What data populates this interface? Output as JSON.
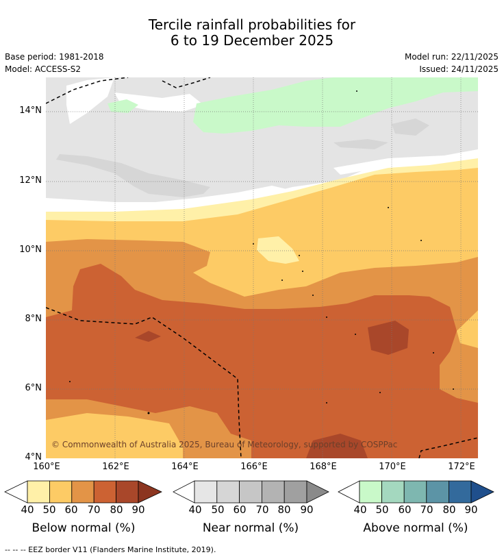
{
  "title_line1": "Tercile rainfall probabilities for",
  "title_line2": "6 to 19 December 2025",
  "base_period": "Base period: 1981-2018",
  "model": "Model: ACCESS-S2",
  "model_run": "Model run: 22/11/2025",
  "issued": "Issued: 24/11/2025",
  "copyright": "© Commonwealth of Australia 2025, Bureau of Meteorology, supported by COSPPac",
  "lat_labels": [
    "14°N",
    "12°N",
    "10°N",
    "8°N",
    "6°N",
    "4°N"
  ],
  "lon_labels": [
    "160°E",
    "162°E",
    "164°E",
    "166°E",
    "168°E",
    "170°E",
    "172°E"
  ],
  "colorbars": [
    {
      "label": "Below normal (%)",
      "ticks": [
        "40",
        "50",
        "60",
        "70",
        "80",
        "90"
      ],
      "colors": [
        "#fff0a8",
        "#fdcb65",
        "#e39447",
        "#cc6233",
        "#a9472a",
        "#8c3520"
      ]
    },
    {
      "label": "Near normal (%)",
      "ticks": [
        "40",
        "50",
        "60",
        "70",
        "80",
        "90"
      ],
      "colors": [
        "#e6e6e6",
        "#d6d6d6",
        "#c6c6c6",
        "#b3b3b3",
        "#a0a0a0",
        "#8a8a8a"
      ]
    },
    {
      "label": "Above normal (%)",
      "ticks": [
        "40",
        "50",
        "60",
        "70",
        "80",
        "90"
      ],
      "colors": [
        "#c9f9c9",
        "#a4d8bf",
        "#7eb7b0",
        "#5c94a6",
        "#336a9c",
        "#1f4f8c"
      ]
    }
  ],
  "footer": "--  --  -- EEZ border V11 (Flanders Marine Institute, 2019)."
}
